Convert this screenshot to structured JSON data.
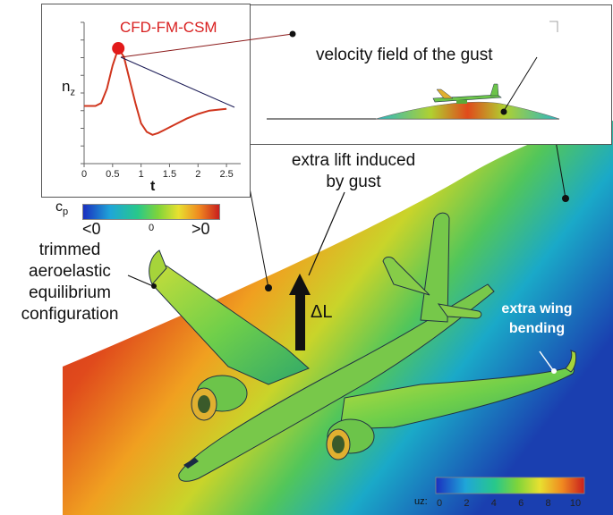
{
  "labels": {
    "nz_y_label": "n",
    "nz_y_sub": "z",
    "t_x_label": "t",
    "method": "CFD-FM-CSM",
    "gust_velocity": "velocity field of the gust",
    "extra_lift_line1": "extra lift induced",
    "extra_lift_line2": "by gust",
    "trimmed_line1": "trimmed",
    "trimmed_line2": "aeroelastic",
    "trimmed_line3": "equilibrium",
    "trimmed_line4": "configuration",
    "delta_l": "ΔL",
    "wing_bending_line1": "extra wing",
    "wing_bending_line2": "bending"
  },
  "cp_legend": {
    "title": "c",
    "title_sub": "p",
    "left": "<0",
    "mid": "0",
    "right": ">0"
  },
  "uz_legend": {
    "title": "uz:",
    "ticks": [
      "0",
      "2",
      "4",
      "6",
      "8",
      "10"
    ]
  },
  "chart_data": {
    "type": "line",
    "xlabel": "t",
    "ylabel": "n_z",
    "xlim": [
      0,
      2.75
    ],
    "x_ticks": [
      "0",
      "0.5",
      "1",
      "1.5",
      "2",
      "2.5"
    ],
    "series": [
      {
        "name": "CFD-FM-CSM",
        "x": [
          0,
          0.2,
          0.3,
          0.4,
          0.5,
          0.6,
          0.7,
          0.8,
          0.9,
          1.0,
          1.1,
          1.2,
          1.3,
          1.4,
          1.6,
          1.8,
          2.0,
          2.2,
          2.4,
          2.5
        ],
        "y": [
          0,
          0,
          0.05,
          0.3,
          0.7,
          1.0,
          0.85,
          0.45,
          0.05,
          -0.3,
          -0.45,
          -0.5,
          -0.47,
          -0.42,
          -0.32,
          -0.22,
          -0.14,
          -0.08,
          -0.06,
          -0.05
        ]
      }
    ],
    "highlight_point": {
      "x": 0.6,
      "y": 1.0
    }
  },
  "colors": {
    "curve": "#d0351d",
    "method_text": "#d81f1f",
    "marker": "#e21a1a"
  }
}
